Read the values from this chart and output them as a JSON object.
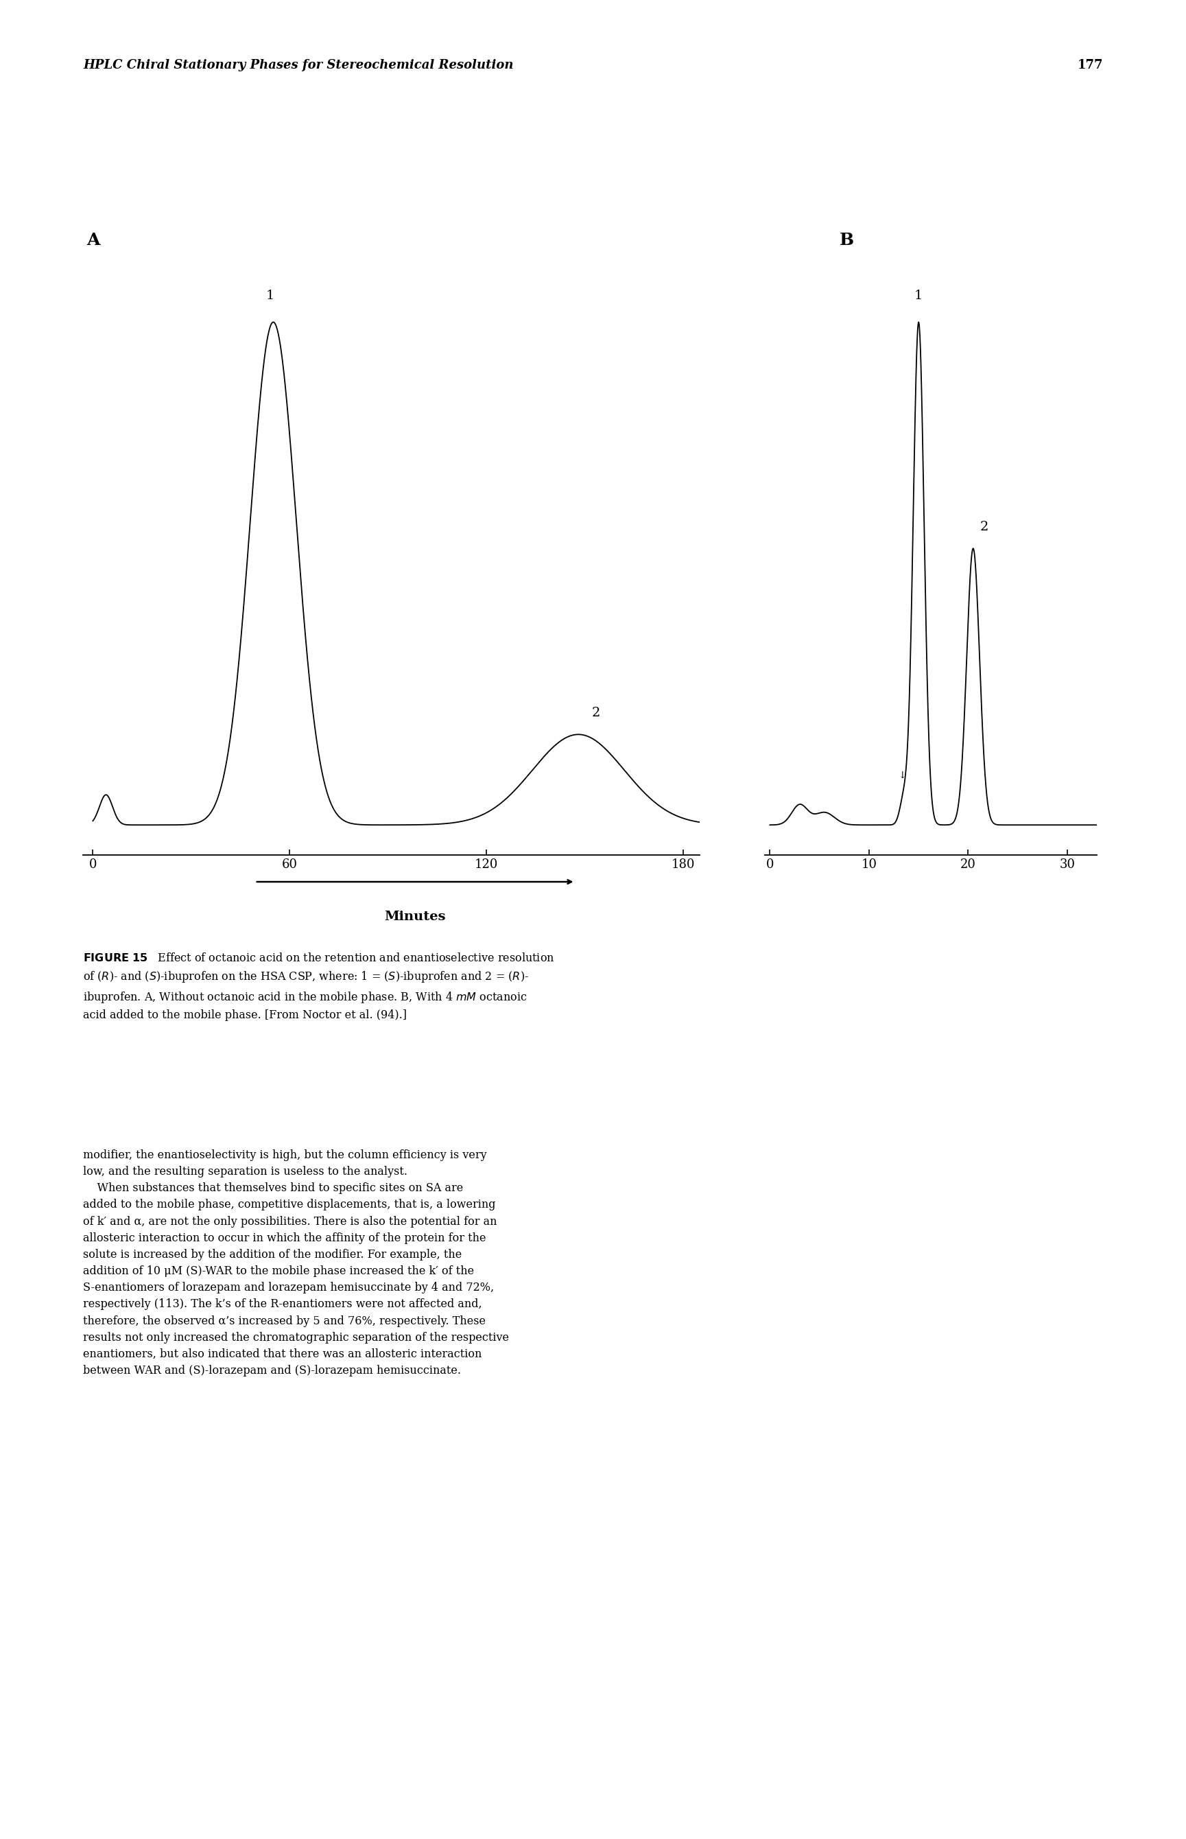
{
  "header_text": "HPLC Chiral Stationary Phases for Stereochemical Resolution",
  "header_page": "177",
  "panel_A_label": "A",
  "panel_B_label": "B",
  "panel_A_xlabel_ticks": [
    0,
    60,
    120,
    180
  ],
  "panel_B_xlabel_ticks": [
    0,
    10,
    20,
    30
  ],
  "xlabel_arrow_label": "Minutes",
  "bg_color": "#ffffff",
  "line_color": "#000000"
}
